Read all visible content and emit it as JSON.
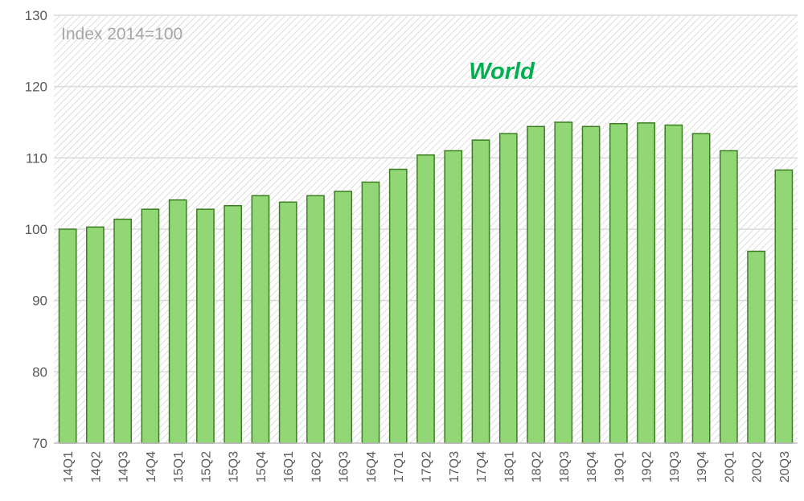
{
  "chart_data": {
    "type": "bar",
    "title": "World",
    "unit_label": "Index 2014=100",
    "xlabel": "",
    "ylabel": "",
    "ylim": [
      70,
      130
    ],
    "yticks": [
      70,
      80,
      90,
      100,
      110,
      120,
      130
    ],
    "categories": [
      "14Q1",
      "14Q2",
      "14Q3",
      "14Q4",
      "15Q1",
      "15Q2",
      "15Q3",
      "15Q4",
      "16Q1",
      "16Q2",
      "16Q3",
      "16Q4",
      "17Q1",
      "17Q2",
      "17Q3",
      "17Q4",
      "18Q1",
      "18Q2",
      "18Q3",
      "18Q4",
      "19Q1",
      "19Q2",
      "19Q3",
      "19Q4",
      "20Q1",
      "20Q2",
      "20Q3"
    ],
    "values": [
      100.0,
      100.3,
      101.4,
      102.8,
      104.1,
      102.8,
      103.3,
      104.7,
      103.8,
      104.7,
      105.3,
      106.6,
      108.4,
      110.4,
      111.0,
      112.5,
      113.4,
      114.4,
      115.0,
      114.4,
      114.8,
      114.9,
      114.6,
      113.4,
      111.0,
      96.9,
      108.3
    ],
    "grid": true,
    "legend": "none",
    "colors": {
      "bar_fill": "#92d776",
      "bar_stroke": "#3d7d22",
      "title": "#00b050",
      "gridline": "#d9d9d9",
      "hatch": "#d9d9d9",
      "unit_label": "#a6a6a6",
      "axis_text": "#595959"
    }
  }
}
